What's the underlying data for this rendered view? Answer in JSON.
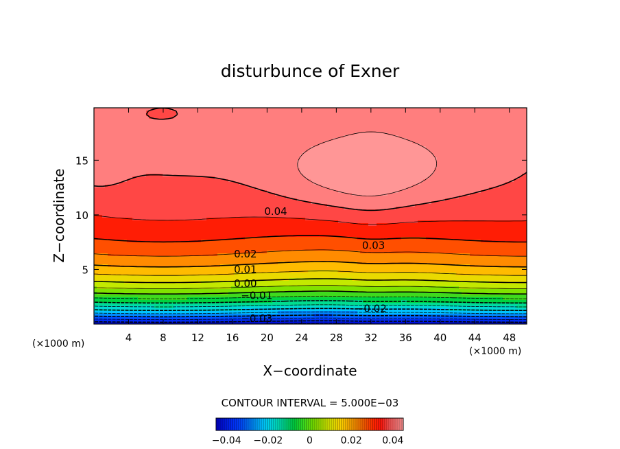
{
  "chart_data": {
    "type": "heatmap",
    "title": "disturbunce of Exner",
    "xlabel": "X−coordinate",
    "ylabel": "Z−coordinate",
    "x_unit_left": "(×1000 m)",
    "x_unit_right": "(×1000 m)",
    "xlim": [
      0,
      50
    ],
    "ylim": [
      0,
      19.8
    ],
    "x_ticks": [
      4,
      8,
      12,
      16,
      20,
      24,
      28,
      32,
      36,
      40,
      44,
      48
    ],
    "x_tick_labels": [
      "4",
      "8",
      "12",
      "16",
      "20",
      "24",
      "28",
      "32",
      "36",
      "40",
      "44",
      "48"
    ],
    "y_ticks": [
      5,
      10,
      15
    ],
    "y_tick_labels": [
      "5",
      "10",
      "15"
    ],
    "contour_interval_text": "CONTOUR INTERVAL = 5.000E−03",
    "contour_interval": 0.005,
    "value_range": [
      -0.045,
      0.045
    ],
    "contour_labels": [
      {
        "text": "0.04",
        "x": 21.0,
        "z": 10.3
      },
      {
        "text": "0.03",
        "x": 32.3,
        "z": 7.2
      },
      {
        "text": "0.02",
        "x": 17.5,
        "z": 6.4
      },
      {
        "text": "0.01",
        "x": 17.5,
        "z": 5.0
      },
      {
        "text": "0.00",
        "x": 17.5,
        "z": 3.7
      },
      {
        "text": "−0.01",
        "x": 18.8,
        "z": 2.6
      },
      {
        "text": "−0.02",
        "x": 32.0,
        "z": 1.4
      },
      {
        "text": "−0.03",
        "x": 18.8,
        "z": 0.5
      }
    ],
    "colorbar": {
      "tick_labels": [
        "−0.04",
        "−0.02",
        "0",
        "0.02",
        "0.04"
      ],
      "tick_values": [
        -0.04,
        -0.02,
        0,
        0.02,
        0.04
      ]
    }
  }
}
